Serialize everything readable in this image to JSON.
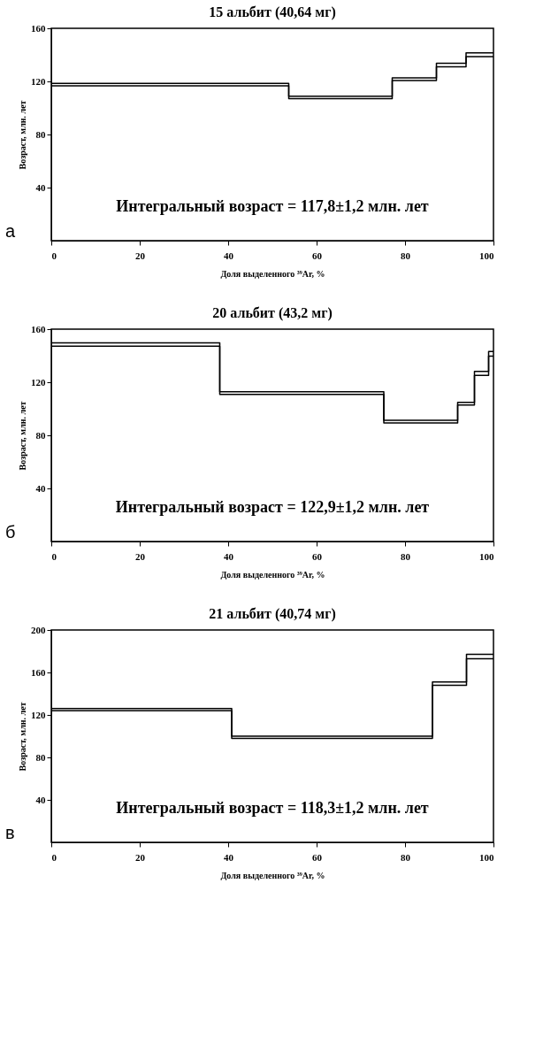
{
  "chart_data": [
    {
      "type": "step",
      "title": "15 альбит (40,64 мг)",
      "xlabel": "Доля выделенного ³⁹Ar, %",
      "ylabel": "Возраст, млн. лет",
      "annotations": [
        "Интегральный возраст = 117,8±1,2 млн. лет",
        "а"
      ],
      "xlim": [
        0,
        100
      ],
      "xticks": [
        0,
        20,
        40,
        60,
        80,
        100
      ],
      "ylim": [
        0,
        160
      ],
      "yticks": [
        40,
        80,
        120,
        160
      ],
      "grid": false,
      "series": [
        {
          "color": "#000000",
          "x": [
            0,
            53.7,
            77.1,
            87.1,
            93.8,
            100
          ],
          "values": [
            118.5,
            108.8,
            122.6,
            133.6,
            141.5,
            141.5
          ]
        },
        {
          "color": "#000000",
          "x": [
            0,
            53.7,
            77.1,
            87.1,
            93.8,
            100
          ],
          "values": [
            116.7,
            107,
            120.7,
            131,
            138.6,
            138.6
          ]
        }
      ]
    },
    {
      "type": "step",
      "title": "20 альбит (43,2 мг)",
      "xlabel": "Доля выделенного ³⁹Ar, %",
      "ylabel": "Возраст, млн. лет",
      "annotations": [
        "Интегральный возраст = 122,9±1,2 млн. лет",
        "б"
      ],
      "xlim": [
        0,
        100
      ],
      "xticks": [
        0,
        20,
        40,
        60,
        80,
        100
      ],
      "ylim": [
        0,
        160
      ],
      "yticks": [
        40,
        80,
        120,
        160
      ],
      "grid": false,
      "series": [
        {
          "color": "#000000",
          "x": [
            0,
            38.1,
            75.2,
            91.9,
            95.7,
            98.9,
            100
          ],
          "values": [
            149.6,
            112.9,
            91.3,
            104.8,
            128.2,
            143.2,
            143.2
          ]
        },
        {
          "color": "#000000",
          "x": [
            0,
            38.1,
            75.2,
            91.9,
            95.7,
            98.9,
            100
          ],
          "values": [
            147.2,
            110.9,
            89.3,
            102.8,
            125.1,
            139.7,
            139.7
          ]
        }
      ]
    },
    {
      "type": "step",
      "title": "21 альбит (40,74 мг)",
      "xlabel": "Доля выделенного ³⁹Ar, %",
      "ylabel": "Возраст, млн. лет",
      "annotations": [
        "Интегральный возраст = 118,3±1,2 млн. лет",
        "в"
      ],
      "xlim": [
        0,
        100
      ],
      "xticks": [
        0,
        20,
        40,
        60,
        80,
        100
      ],
      "ylim": [
        0,
        200
      ],
      "yticks": [
        40,
        80,
        120,
        160,
        200
      ],
      "grid": false,
      "series": [
        {
          "color": "#000000",
          "x": [
            0,
            40.8,
            86.2,
            93.9,
            100
          ],
          "values": [
            126,
            100,
            151,
            177,
            177
          ]
        },
        {
          "color": "#000000",
          "x": [
            0,
            40.8,
            86.2,
            93.9,
            100
          ],
          "values": [
            124,
            98,
            148,
            173,
            173
          ]
        }
      ]
    }
  ]
}
